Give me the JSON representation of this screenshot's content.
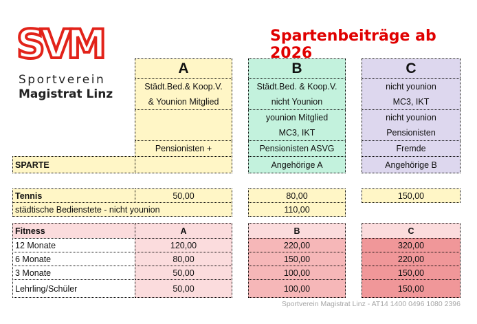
{
  "logo": {
    "letters": "SVM",
    "line1": "Sportverein",
    "line2": "Magistrat Linz",
    "color": "#e2231a"
  },
  "title": "Spartenbeiträge ab 2026",
  "title_color": "#e00000",
  "header": {
    "label": "SPARTE",
    "columns": [
      {
        "letter": "A",
        "row1": "Städt.Bed.& Koop.V.",
        "row1b": "& Younion Mitglied",
        "row2": "",
        "row2b": "",
        "row3": "Pensionisten +",
        "row4": ""
      },
      {
        "letter": "B",
        "row1": "Städt.Bed. & Koop.V.",
        "row1b": "nicht Younion",
        "row2": "younion Mitglied",
        "row2b": "MC3, IKT",
        "row3": "Pensionisten ASVG",
        "row4": "Angehörige A"
      },
      {
        "letter": "C",
        "row1": "nicht younion",
        "row1b": "MC3, IKT",
        "row2": "nicht younion",
        "row2b": "Pensionisten",
        "row3": "Fremde",
        "row4": "Angehörige B"
      }
    ]
  },
  "tennis": {
    "label": "Tennis",
    "a": "50,00",
    "b": "80,00",
    "c": "150,00",
    "row2_label": "städtische Bedienstete - nicht younion",
    "row2_b": "110,00"
  },
  "fitness": {
    "label": "Fitness",
    "cols": [
      "A",
      "B",
      "C"
    ],
    "rows": [
      {
        "label": "12 Monate",
        "a": "120,00",
        "b": "220,00",
        "c": "320,00"
      },
      {
        "label": "6 Monate",
        "a": "80,00",
        "b": "150,00",
        "c": "220,00"
      },
      {
        "label": "3 Monate",
        "a": "50,00",
        "b": "100,00",
        "c": "150,00"
      },
      {
        "label": "Lehrling/Schüler",
        "a": "50,00",
        "b": "100,00",
        "c": "150,00"
      }
    ]
  },
  "footer": "Sportverein Magistrat Linz - AT14 1400 0496 1080 2396"
}
